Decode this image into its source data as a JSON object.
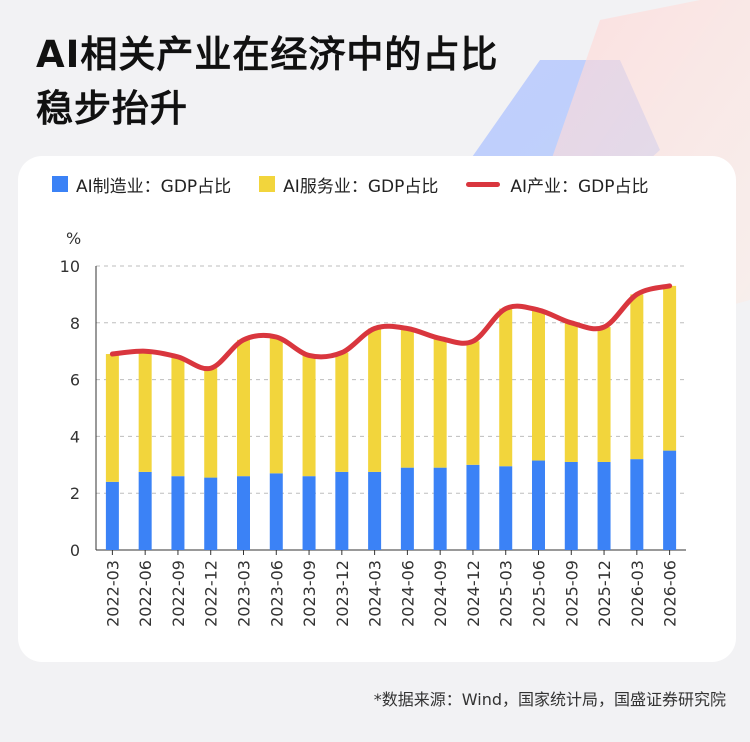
{
  "title_lines": [
    "AI相关产业在经济中的占比",
    "稳步抬升"
  ],
  "source": "*数据来源：Wind，国家统计局，国盛证券研究院",
  "colors": {
    "manufacturing": "#3b82f6",
    "services": "#f2d53c",
    "total_line": "#d9363e",
    "grid": "#bdbdbd",
    "axis": "#333333"
  },
  "chart_data": {
    "type": "bar",
    "stacked": true,
    "unit_label": "%",
    "categories": [
      "2022-03",
      "2022-06",
      "2022-09",
      "2022-12",
      "2023-03",
      "2023-06",
      "2023-09",
      "2023-12",
      "2024-03",
      "2024-06",
      "2024-09",
      "2024-12",
      "2025-03",
      "2025-06",
      "2025-09",
      "2025-12",
      "2026-03",
      "2026-06"
    ],
    "series": [
      {
        "name": "AI制造业：GDP占比",
        "type": "bar",
        "values": [
          2.4,
          2.75,
          2.6,
          2.55,
          2.6,
          2.7,
          2.6,
          2.75,
          2.75,
          2.9,
          2.9,
          3.0,
          2.95,
          3.15,
          3.1,
          3.1,
          3.2,
          3.5
        ]
      },
      {
        "name": "AI服务业：GDP占比",
        "type": "bar",
        "values": [
          4.5,
          4.25,
          4.2,
          3.85,
          4.8,
          4.8,
          4.25,
          4.2,
          5.05,
          4.9,
          4.55,
          4.35,
          5.55,
          5.3,
          4.9,
          4.75,
          5.8,
          5.8
        ]
      },
      {
        "name": "AI产业：GDP占比",
        "type": "line",
        "values": [
          6.9,
          7.0,
          6.8,
          6.4,
          7.4,
          7.5,
          6.85,
          6.95,
          7.8,
          7.8,
          7.45,
          7.35,
          8.5,
          8.45,
          8.0,
          7.85,
          9.0,
          9.3
        ]
      }
    ],
    "ylim": [
      0,
      10
    ],
    "yticks": [
      0,
      2,
      4,
      6,
      8,
      10
    ],
    "grid": "horizontal dashed",
    "legend_position": "top"
  }
}
